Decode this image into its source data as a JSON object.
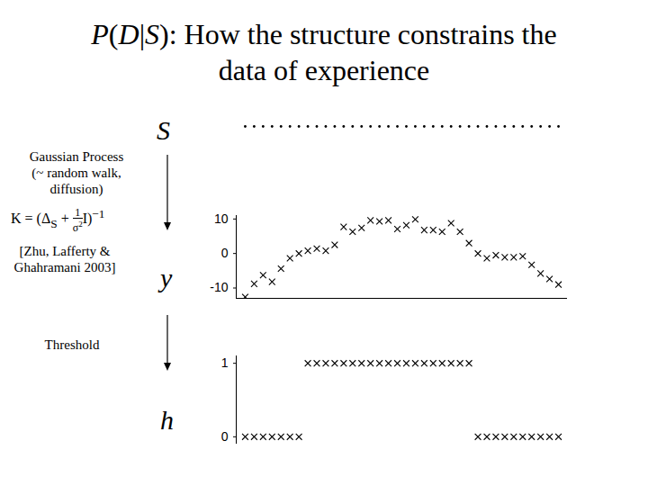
{
  "title": "P(D|S): How the structure constrains the data of experience",
  "title_break_after": "constrains the",
  "nodes": [
    "S",
    "y",
    "h"
  ],
  "left_labels": {
    "process": [
      "Gaussian Process",
      "(~ random walk,",
      "diffusion)"
    ],
    "citation": [
      "[Zhu, Lafferty &",
      "Ghahramani 2003]"
    ],
    "step": "Threshold"
  },
  "formula": {
    "lhs": "K",
    "eq": "=",
    "open": "(",
    "delta": "Δ",
    "sub": "S",
    "plus": "+",
    "num": "1",
    "den": "σ",
    "den_sup": "2",
    "identity": "I",
    "close": ")",
    "exp": "−1"
  },
  "chart_data": [
    {
      "type": "scatter",
      "marker": "x",
      "color": "#000000",
      "tick_labels": "y",
      "x": [
        1,
        2,
        3,
        4,
        5,
        6,
        7,
        8,
        9,
        10,
        11,
        12,
        13,
        14,
        15,
        16,
        17,
        18,
        19,
        20,
        21,
        22,
        23,
        24,
        25,
        26,
        27,
        28,
        29,
        30,
        31,
        32,
        33,
        34,
        35,
        36
      ],
      "values": [
        -12.6,
        -8.8,
        -6.3,
        -8.2,
        -4.4,
        -1.4,
        0,
        0.8,
        1.4,
        0.8,
        2.5,
        7.7,
        6.3,
        7.4,
        9.6,
        9.3,
        9.6,
        7.1,
        8.2,
        9.9,
        6.8,
        6.8,
        6.3,
        8.8,
        6.3,
        3.0,
        0,
        -1.4,
        -0.5,
        -1.1,
        -1.1,
        -0.8,
        -3.3,
        -5.8,
        -7.4,
        -9.0
      ],
      "xlim": [
        0,
        37
      ],
      "ylim": [
        -13,
        11
      ],
      "yticks": [
        10,
        0,
        -10
      ]
    },
    {
      "type": "scatter",
      "marker": "x",
      "color": "#000000",
      "tick_labels": "y",
      "x": [
        1,
        2,
        3,
        4,
        5,
        6,
        7,
        8,
        9,
        10,
        11,
        12,
        13,
        14,
        15,
        16,
        17,
        18,
        19,
        20,
        21,
        22,
        23,
        24,
        25,
        26,
        27,
        28,
        29,
        30,
        31,
        32,
        33,
        34,
        35,
        36
      ],
      "values": [
        0,
        0,
        0,
        0,
        0,
        0,
        0,
        1,
        1,
        1,
        1,
        1,
        1,
        1,
        1,
        1,
        1,
        1,
        1,
        1,
        1,
        1,
        1,
        1,
        1,
        1,
        0,
        0,
        0,
        0,
        0,
        0,
        0,
        0,
        0,
        0
      ],
      "xlim": [
        0,
        37
      ],
      "ylim": [
        -0.1,
        1.1
      ],
      "yticks": [
        1,
        0
      ]
    }
  ]
}
